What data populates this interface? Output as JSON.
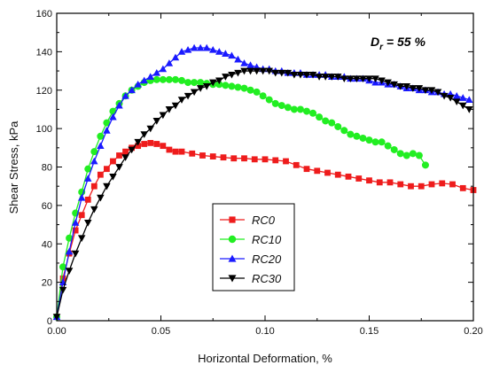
{
  "chart_data": {
    "type": "line",
    "title": "",
    "annotation": {
      "symbol": "D",
      "subscript": "r",
      "rest": " = 55 %"
    },
    "xlabel": "Horizontal Deformation, %",
    "ylabel": "Shear Stress, kPa",
    "xlim": [
      0.0,
      0.2
    ],
    "ylim": [
      0,
      160
    ],
    "xticks": [
      "0.00",
      "0.05",
      "0.10",
      "0.15",
      "0.20"
    ],
    "yticks": [
      "0",
      "20",
      "40",
      "60",
      "80",
      "100",
      "120",
      "140",
      "160"
    ],
    "grid": false,
    "legend_position": "lower-center",
    "series": [
      {
        "name": "RC0",
        "color": "#ee1c1c",
        "marker": "square",
        "x": [
          0.0,
          0.003,
          0.006,
          0.009,
          0.012,
          0.015,
          0.018,
          0.021,
          0.024,
          0.027,
          0.03,
          0.033,
          0.036,
          0.039,
          0.042,
          0.045,
          0.048,
          0.051,
          0.054,
          0.057,
          0.06,
          0.065,
          0.07,
          0.075,
          0.08,
          0.085,
          0.09,
          0.095,
          0.1,
          0.105,
          0.11,
          0.115,
          0.12,
          0.125,
          0.13,
          0.135,
          0.14,
          0.145,
          0.15,
          0.155,
          0.16,
          0.165,
          0.17,
          0.175,
          0.18,
          0.185,
          0.19,
          0.195,
          0.2
        ],
        "y": [
          2,
          22,
          35,
          47,
          55,
          63,
          70,
          76,
          79,
          83,
          86,
          88,
          90,
          91,
          92,
          92.5,
          92,
          91,
          89,
          88,
          88,
          87,
          86,
          85.5,
          85,
          84.5,
          84.5,
          84,
          84,
          83.5,
          83,
          81,
          79,
          78,
          77,
          76,
          75,
          74,
          73,
          72,
          72,
          71,
          70,
          70,
          71,
          71.5,
          71,
          69,
          68
        ]
      },
      {
        "name": "RC10",
        "color": "#22ee22",
        "marker": "circle",
        "x": [
          0.0,
          0.003,
          0.006,
          0.009,
          0.012,
          0.015,
          0.018,
          0.021,
          0.024,
          0.027,
          0.03,
          0.033,
          0.036,
          0.039,
          0.042,
          0.045,
          0.048,
          0.051,
          0.054,
          0.057,
          0.06,
          0.063,
          0.066,
          0.069,
          0.072,
          0.075,
          0.078,
          0.081,
          0.084,
          0.087,
          0.09,
          0.093,
          0.096,
          0.099,
          0.102,
          0.105,
          0.108,
          0.111,
          0.114,
          0.117,
          0.12,
          0.123,
          0.126,
          0.129,
          0.132,
          0.135,
          0.138,
          0.141,
          0.144,
          0.147,
          0.15,
          0.153,
          0.156,
          0.159,
          0.162,
          0.165,
          0.168,
          0.171,
          0.174,
          0.177
        ],
        "y": [
          2,
          28,
          43,
          56,
          67,
          79,
          88,
          96,
          103,
          109,
          113,
          117,
          120,
          122,
          124,
          125,
          125.5,
          125.5,
          125.5,
          125.5,
          125,
          124,
          124,
          124,
          123.5,
          123,
          123,
          122.5,
          122,
          121.5,
          121,
          120,
          119,
          117,
          115,
          113,
          112,
          111,
          110,
          110,
          109,
          108,
          106,
          104,
          103,
          101,
          99,
          97,
          96,
          95,
          94,
          93,
          93,
          91,
          89,
          87,
          86,
          87,
          86,
          81
        ]
      },
      {
        "name": "RC20",
        "color": "#1a1aff",
        "marker": "triangle-up",
        "x": [
          0.0,
          0.003,
          0.006,
          0.009,
          0.012,
          0.015,
          0.018,
          0.021,
          0.024,
          0.027,
          0.03,
          0.033,
          0.036,
          0.039,
          0.042,
          0.045,
          0.048,
          0.051,
          0.054,
          0.057,
          0.06,
          0.063,
          0.066,
          0.069,
          0.072,
          0.075,
          0.078,
          0.081,
          0.084,
          0.087,
          0.09,
          0.093,
          0.096,
          0.099,
          0.102,
          0.105,
          0.108,
          0.111,
          0.114,
          0.117,
          0.12,
          0.123,
          0.126,
          0.129,
          0.132,
          0.135,
          0.138,
          0.141,
          0.144,
          0.147,
          0.15,
          0.153,
          0.156,
          0.159,
          0.162,
          0.165,
          0.168,
          0.171,
          0.174,
          0.177,
          0.18,
          0.183,
          0.186,
          0.189,
          0.192,
          0.195,
          0.198
        ],
        "y": [
          2,
          20,
          36,
          51,
          64,
          74,
          83,
          91,
          99,
          106,
          112,
          117,
          120,
          123,
          125,
          127,
          129,
          131,
          134,
          137,
          140,
          141,
          142,
          142,
          142,
          141,
          140,
          139,
          138,
          136,
          134,
          133,
          132,
          131,
          131,
          130,
          130,
          129,
          129,
          129,
          128,
          128,
          128,
          128,
          127,
          127,
          127,
          126,
          126,
          126,
          125,
          124,
          124,
          123,
          123,
          122,
          121,
          121,
          120,
          120,
          119,
          119,
          118,
          118,
          117,
          116,
          115
        ]
      },
      {
        "name": "RC30",
        "color": "#000000",
        "marker": "triangle-down",
        "x": [
          0.0,
          0.003,
          0.006,
          0.009,
          0.012,
          0.015,
          0.018,
          0.021,
          0.024,
          0.027,
          0.03,
          0.033,
          0.036,
          0.039,
          0.042,
          0.045,
          0.048,
          0.051,
          0.054,
          0.057,
          0.06,
          0.063,
          0.066,
          0.069,
          0.072,
          0.075,
          0.078,
          0.081,
          0.084,
          0.087,
          0.09,
          0.093,
          0.096,
          0.099,
          0.102,
          0.105,
          0.108,
          0.111,
          0.114,
          0.117,
          0.12,
          0.123,
          0.126,
          0.129,
          0.132,
          0.135,
          0.138,
          0.141,
          0.144,
          0.147,
          0.15,
          0.153,
          0.156,
          0.159,
          0.162,
          0.165,
          0.168,
          0.171,
          0.174,
          0.177,
          0.18,
          0.183,
          0.186,
          0.189,
          0.192,
          0.195,
          0.198
        ],
        "y": [
          2,
          16,
          26,
          35,
          43,
          51,
          58,
          64,
          70,
          75,
          80,
          85,
          89,
          93,
          97,
          100,
          104,
          107,
          110,
          112,
          115,
          117,
          119,
          121,
          122,
          124,
          125,
          127,
          128,
          129,
          130,
          130,
          130,
          130,
          130,
          129,
          129,
          129,
          128,
          128,
          128,
          128,
          127,
          127,
          127,
          127,
          126,
          126,
          126,
          126,
          126,
          126,
          125,
          124,
          123,
          122,
          122,
          121,
          121,
          120,
          120,
          119,
          117,
          116,
          114,
          112,
          110
        ]
      }
    ]
  }
}
